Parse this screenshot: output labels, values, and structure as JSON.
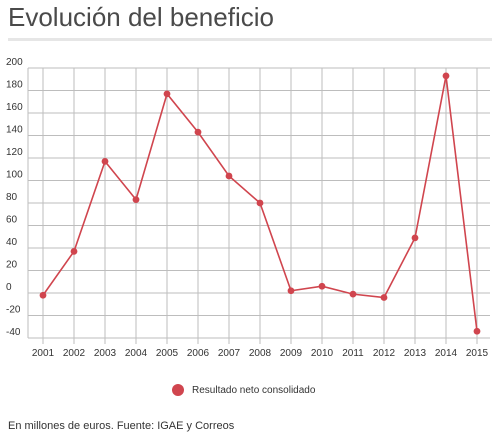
{
  "title": "Evolución del beneficio",
  "source_note": "En millones de euros. Fuente: IGAE y Correos",
  "colors": {
    "series": "#d0454e",
    "grid": "#bdbdbd",
    "text": "#333333"
  },
  "chart_data": {
    "type": "line",
    "x": [
      "2001",
      "2002",
      "2003",
      "2004",
      "2005",
      "2006",
      "2007",
      "2008",
      "2009",
      "2010",
      "2011",
      "2012",
      "2013",
      "2014",
      "2015"
    ],
    "series": [
      {
        "name": "Resultado neto consolidado",
        "values": [
          -2,
          37,
          117,
          83,
          177,
          143,
          104,
          80,
          2,
          6,
          -1,
          -4,
          49,
          193,
          -34
        ]
      }
    ],
    "ylim": [
      -40,
      200
    ],
    "yticks": [
      -40,
      -20,
      0,
      20,
      40,
      60,
      80,
      100,
      120,
      140,
      160,
      180,
      200
    ],
    "grid": true,
    "legend_position": "bottom-center"
  }
}
